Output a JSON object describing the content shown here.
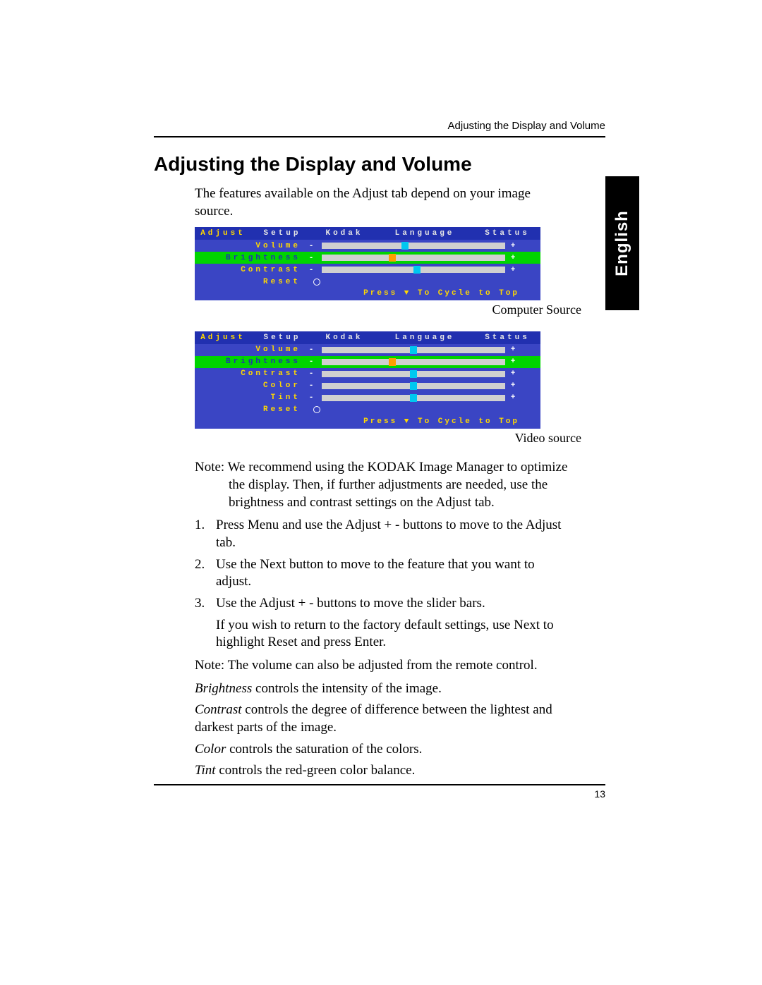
{
  "header": {
    "running": "Adjusting the Display and Volume"
  },
  "title": "Adjusting the Display and Volume",
  "intro": "The features available on the Adjust tab depend on your image source.",
  "side_tab": "English",
  "osd": {
    "tabs": [
      "Adjust",
      "Setup",
      "Kodak",
      "Language",
      "Status"
    ],
    "footer": "Press ▼ To Cycle to Top",
    "panel1": {
      "caption": "Computer Source",
      "rows": [
        {
          "label": "Volume",
          "type": "slider",
          "pos": 45,
          "selected": false
        },
        {
          "label": "Brightness",
          "type": "slider",
          "pos": 38,
          "selected": true
        },
        {
          "label": "Contrast",
          "type": "slider",
          "pos": 52,
          "selected": false
        },
        {
          "label": "Reset",
          "type": "radio"
        }
      ]
    },
    "panel2": {
      "caption": "Video source",
      "rows": [
        {
          "label": "Volume",
          "type": "slider",
          "pos": 50,
          "selected": false
        },
        {
          "label": "Brightness",
          "type": "slider",
          "pos": 38,
          "selected": true
        },
        {
          "label": "Contrast",
          "type": "slider",
          "pos": 50,
          "selected": false
        },
        {
          "label": "Color",
          "type": "slider",
          "pos": 50,
          "selected": false
        },
        {
          "label": "Tint",
          "type": "slider",
          "pos": 50,
          "selected": false
        },
        {
          "label": "Reset",
          "type": "radio"
        }
      ]
    }
  },
  "note1_prefix": "Note:",
  "note1_line1": "We recommend using the KODAK Image Manager to optimize",
  "note1_line2": "the display. Then, if further adjustments are needed, use the brightness and contrast settings on the Adjust tab.",
  "steps": [
    "Press Menu and use the Adjust + - buttons to move to the Adjust tab.",
    "Use the Next button to move to the feature that you want to adjust.",
    "Use the Adjust + - buttons to move the slider bars."
  ],
  "step3_extra": "If you wish to return to the factory default settings, use Next to highlight Reset and press Enter.",
  "note2": "Note: The volume can also be adjusted from the remote control.",
  "defs": [
    {
      "term": "Brightness",
      "text": " controls the intensity of the image."
    },
    {
      "term": "Contrast",
      "text": " controls the degree of difference between the lightest and darkest parts of the image."
    },
    {
      "term": "Color",
      "text": " controls the saturation of the colors."
    },
    {
      "term": "Tint",
      "text": " controls the red-green color balance."
    }
  ],
  "page_number": "13"
}
